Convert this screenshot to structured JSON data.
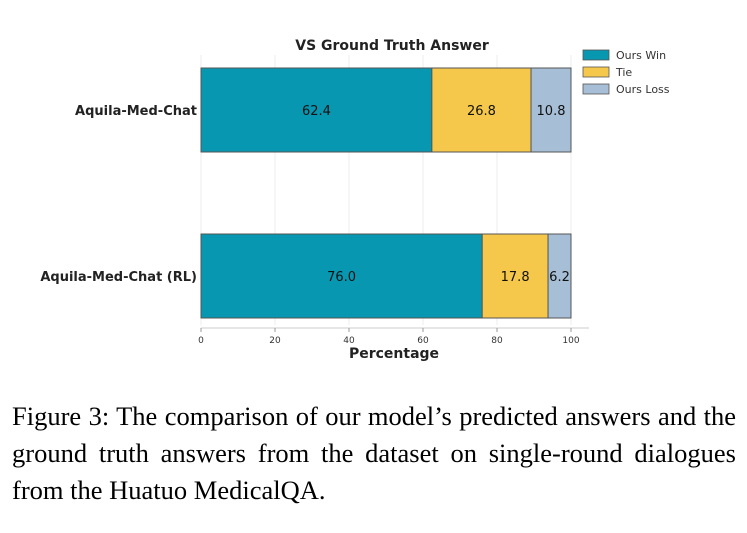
{
  "chart_data": {
    "type": "bar",
    "orientation": "horizontal",
    "stacked": true,
    "title": "VS Ground Truth Answer",
    "xlabel": "Percentage",
    "ylabel": "",
    "xlim": [
      0,
      100
    ],
    "xticks": [
      0,
      20,
      40,
      60,
      80,
      100
    ],
    "grid": true,
    "legend_position": "top-right",
    "categories": [
      "Aquila-Med-Chat",
      "Aquila-Med-Chat (RL)"
    ],
    "series": [
      {
        "name": "Ours Win",
        "color": "#0797b1",
        "values": [
          62.4,
          76.0
        ]
      },
      {
        "name": "Tie",
        "color": "#f5c84c",
        "values": [
          26.8,
          17.8
        ]
      },
      {
        "name": "Ours Loss",
        "color": "#a6bfd6",
        "values": [
          10.8,
          6.2
        ]
      }
    ]
  },
  "caption": "Figure 3: The comparison of our model’s predicted answers and the ground truth answers from the dataset on single-round dialogues from the Huatuo MedicalQA."
}
